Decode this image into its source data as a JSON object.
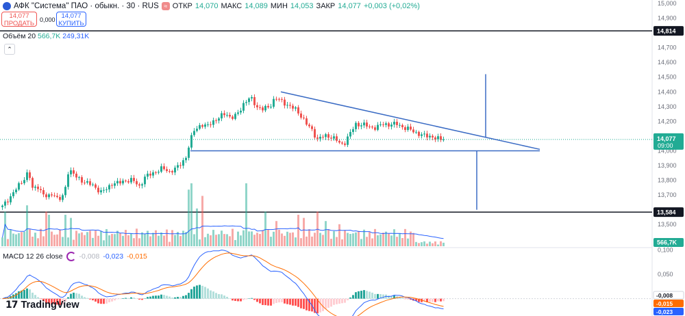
{
  "header": {
    "symbol": "АФК \"Система\" ПАО · обыкн. · 30 · RUS",
    "open_label": "ОТКР",
    "open": "14,070",
    "high_label": "МАКС",
    "high": "14,089",
    "low_label": "МИН",
    "low": "14,053",
    "close_label": "ЗАКР",
    "close": "14,077",
    "change": "+0,003 (+0,02%)"
  },
  "trade": {
    "sell_price": "14,077",
    "sell_label": "ПРОДАТЬ",
    "spread": "0,000",
    "buy_price": "14,077",
    "buy_label": "КУПИТЬ"
  },
  "volume_indicator": {
    "label": "Объём 20",
    "value": "566,7K",
    "ma": "249,31K"
  },
  "macd_indicator": {
    "label": "MACD 12 26 close",
    "hist": "-0,008",
    "macd": "-0,023",
    "signal": "-0,015"
  },
  "branding": {
    "mark": "17",
    "name": "TradingView"
  },
  "colors": {
    "up": "#22ab94",
    "down": "#ef5350",
    "macd": "#2962ff",
    "signal": "#ff6d00",
    "drawing": "#3a6bc4"
  },
  "chart_data": {
    "type": "candlestick",
    "price_axis": {
      "range": [
        13.45,
        15.0
      ],
      "ticks": [
        "15,000",
        "14,900",
        "14,814",
        "14,700",
        "14,600",
        "14,500",
        "14,400",
        "14,300",
        "14,200",
        "14,077",
        "14,000",
        "13,900",
        "13,800",
        "13,700",
        "13,584",
        "13,500"
      ]
    },
    "price_tag": {
      "value": 14.077,
      "label": "14,077",
      "time": "09:00"
    },
    "level_lines": [
      {
        "value": 14.814,
        "label": "14,814"
      },
      {
        "value": 13.584,
        "label": "13,584"
      }
    ],
    "volume_tag": "566,7K",
    "macd_axis": {
      "range": [
        -0.03,
        0.105
      ],
      "ticks": [
        "0,100",
        "0,050"
      ]
    },
    "macd_tags": [
      {
        "value": -0.008,
        "label": "-0,008",
        "kind": "hist"
      },
      {
        "value": -0.015,
        "label": "-0,015",
        "kind": "signal"
      },
      {
        "value": -0.023,
        "label": "-0,023",
        "kind": "macd"
      }
    ],
    "anchors": [
      [
        0,
        13.62
      ],
      [
        10,
        13.68
      ],
      [
        20,
        13.74
      ],
      [
        30,
        13.8
      ],
      [
        38,
        13.86
      ],
      [
        44,
        13.74
      ],
      [
        52,
        13.76
      ],
      [
        60,
        13.7
      ],
      [
        66,
        13.68
      ],
      [
        74,
        13.72
      ],
      [
        82,
        13.66
      ],
      [
        90,
        13.7
      ],
      [
        96,
        13.86
      ],
      [
        100,
        13.86
      ],
      [
        108,
        13.82
      ],
      [
        116,
        13.8
      ],
      [
        124,
        13.78
      ],
      [
        134,
        13.76
      ],
      [
        144,
        13.72
      ],
      [
        152,
        13.74
      ],
      [
        160,
        13.78
      ],
      [
        170,
        13.78
      ],
      [
        180,
        13.8
      ],
      [
        190,
        13.8
      ],
      [
        200,
        13.76
      ],
      [
        208,
        13.82
      ],
      [
        216,
        13.84
      ],
      [
        224,
        13.86
      ],
      [
        234,
        13.88
      ],
      [
        244,
        13.86
      ],
      [
        254,
        13.88
      ],
      [
        262,
        13.92
      ],
      [
        268,
        13.96
      ],
      [
        274,
        14.06
      ],
      [
        280,
        14.14
      ],
      [
        290,
        14.18
      ],
      [
        298,
        14.16
      ],
      [
        306,
        14.2
      ],
      [
        316,
        14.22
      ],
      [
        326,
        14.26
      ],
      [
        334,
        14.22
      ],
      [
        342,
        14.24
      ],
      [
        352,
        14.32
      ],
      [
        362,
        14.36
      ],
      [
        372,
        14.3
      ],
      [
        380,
        14.28
      ],
      [
        390,
        14.3
      ],
      [
        398,
        14.36
      ],
      [
        406,
        14.34
      ],
      [
        414,
        14.32
      ],
      [
        420,
        14.3
      ],
      [
        428,
        14.28
      ],
      [
        436,
        14.24
      ],
      [
        444,
        14.18
      ],
      [
        452,
        14.14
      ],
      [
        460,
        14.08
      ],
      [
        470,
        14.1
      ],
      [
        478,
        14.1
      ],
      [
        486,
        14.08
      ],
      [
        494,
        14.04
      ],
      [
        500,
        14.06
      ],
      [
        508,
        14.12
      ],
      [
        516,
        14.18
      ],
      [
        526,
        14.18
      ],
      [
        536,
        14.16
      ],
      [
        546,
        14.16
      ],
      [
        556,
        14.18
      ],
      [
        566,
        14.18
      ],
      [
        576,
        14.18
      ],
      [
        586,
        14.16
      ],
      [
        596,
        14.14
      ],
      [
        606,
        14.12
      ],
      [
        616,
        14.1
      ],
      [
        626,
        14.1
      ],
      [
        636,
        14.08
      ],
      [
        642,
        14.07
      ],
      [
        648,
        14.077
      ]
    ],
    "volume_spikes": [
      [
        2,
        0.55
      ],
      [
        34,
        0.65
      ],
      [
        62,
        0.55
      ],
      [
        66,
        0.62
      ],
      [
        68,
        0.5
      ],
      [
        92,
        0.5
      ],
      [
        100,
        0.45
      ],
      [
        270,
        0.9
      ],
      [
        276,
        1.0
      ],
      [
        282,
        0.6
      ],
      [
        290,
        0.8
      ],
      [
        354,
        1.0
      ],
      [
        382,
        0.55
      ],
      [
        398,
        0.4
      ],
      [
        430,
        0.5
      ],
      [
        440,
        0.45
      ],
      [
        458,
        0.55
      ],
      [
        470,
        0.4
      ],
      [
        490,
        0.35
      ]
    ],
    "drawings": {
      "trendline": [
        {
          "bar": 410,
          "price": 14.4
        },
        {
          "bar": 788,
          "price": 14.01
        }
      ],
      "support": [
        {
          "bar": 278,
          "price": 14.0
        },
        {
          "bar": 788,
          "price": 14.0
        }
      ],
      "vline1": [
        {
          "bar": 709,
          "price": 14.52
        },
        {
          "bar": 709,
          "price": 14.09
        }
      ],
      "vline2": [
        {
          "bar": 696,
          "price": 14.0
        },
        {
          "bar": 696,
          "price": 13.6
        }
      ]
    }
  }
}
